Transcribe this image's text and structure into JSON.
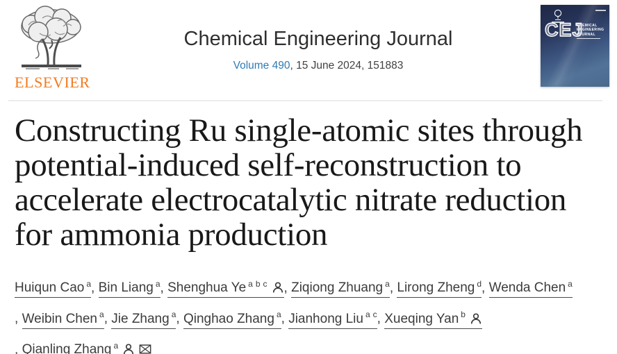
{
  "header": {
    "publisher_wordmark": "ELSEVIER",
    "journal_title": "Chemical Engineering Journal",
    "volume_link": "Volume 490",
    "issue_rest": ", 15 June 2024, 151883",
    "cover": {
      "abbreviation": "CEJ",
      "name_lines": [
        "CHEMICAL",
        "ENGINEERING",
        "JOURNAL"
      ]
    }
  },
  "article": {
    "title": "Constructing Ru single-atomic sites through potential-induced self-reconstruction to accelerate electrocatalytic nitrate reduction for ammonia production"
  },
  "authors": {
    "separator": ", ",
    "list": [
      {
        "name": "Huiqun Cao",
        "sups": "a",
        "icons": []
      },
      {
        "name": "Bin Liang",
        "sups": "a",
        "icons": []
      },
      {
        "name": "Shenghua Ye",
        "sups": "a b c",
        "icons": [
          "person"
        ]
      },
      {
        "name": "Ziqiong Zhuang",
        "sups": "a",
        "icons": []
      },
      {
        "name": "Lirong Zheng",
        "sups": "d",
        "icons": []
      },
      {
        "name": "Wenda Chen",
        "sups": "a",
        "icons": []
      },
      {
        "name": "Weibin Chen",
        "sups": "a",
        "icons": []
      },
      {
        "name": "Jie Zhang",
        "sups": "a",
        "icons": []
      },
      {
        "name": "Qinghao Zhang",
        "sups": "a",
        "icons": []
      },
      {
        "name": "Jianhong Liu",
        "sups": "a c",
        "icons": []
      },
      {
        "name": "Xueqing Yan",
        "sups": "b",
        "icons": [
          "person"
        ]
      },
      {
        "name": "Qianling Zhang",
        "sups": "a",
        "icons": [
          "person",
          "envelope"
        ]
      }
    ]
  },
  "colors": {
    "elsevier_orange": "#f47b20",
    "link_blue": "#2e7cb4"
  }
}
